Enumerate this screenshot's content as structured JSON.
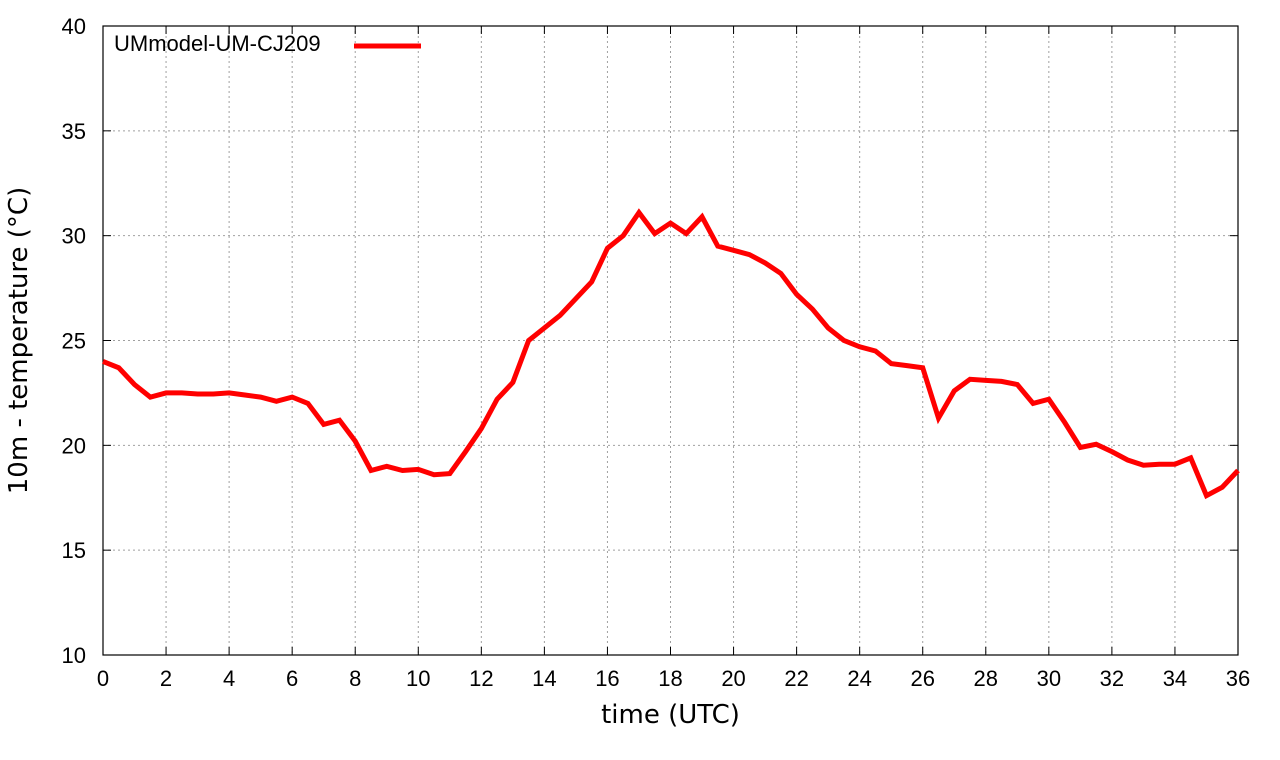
{
  "chart_data": {
    "type": "line",
    "title": "",
    "xlabel": "time (UTC)",
    "ylabel": "10m - temperature (°C)",
    "xlim": [
      0,
      36
    ],
    "ylim": [
      10,
      40
    ],
    "xticks": [
      0,
      2,
      4,
      6,
      8,
      10,
      12,
      14,
      16,
      18,
      20,
      22,
      24,
      26,
      28,
      30,
      32,
      34,
      36
    ],
    "yticks": [
      10,
      15,
      20,
      25,
      30,
      35,
      40
    ],
    "xtick_labels": [
      "0",
      "2",
      "4",
      "6",
      "8",
      "10",
      "12",
      "14",
      "16",
      "18",
      "20",
      "22",
      "24",
      "26",
      "28",
      "30",
      "32",
      "34",
      "36"
    ],
    "ytick_labels": [
      "10",
      "15",
      "20",
      "25",
      "30",
      "35",
      "40"
    ],
    "grid": true,
    "legend_position": "top-left",
    "series": [
      {
        "name": "UMmodel-UM-CJ209",
        "color": "#ff0000",
        "x": [
          0,
          0.5,
          1,
          1.5,
          2,
          2.5,
          3,
          3.5,
          4,
          4.5,
          5,
          5.5,
          6,
          6.5,
          7,
          7.5,
          8,
          8.5,
          9,
          9.5,
          10,
          10.5,
          11,
          11.5,
          12,
          12.5,
          13,
          13.5,
          14,
          14.5,
          15,
          15.5,
          16,
          16.5,
          17,
          17.5,
          18,
          18.5,
          19,
          19.5,
          20,
          20.5,
          21,
          21.5,
          22,
          22.5,
          23,
          23.5,
          24,
          24.5,
          25,
          25.5,
          26,
          26.5,
          27,
          27.5,
          28,
          28.5,
          29,
          29.5,
          30,
          30.5,
          31,
          31.5,
          32,
          32.5,
          33,
          33.5,
          34,
          34.5,
          35,
          35.5,
          36
        ],
        "values": [
          24.0,
          23.7,
          22.9,
          22.3,
          22.5,
          22.5,
          22.45,
          22.45,
          22.5,
          22.4,
          22.3,
          22.1,
          22.3,
          22.0,
          21.0,
          21.2,
          20.2,
          18.8,
          19.0,
          18.8,
          18.85,
          18.6,
          18.65,
          19.7,
          20.8,
          22.2,
          23.0,
          25.0,
          25.6,
          26.2,
          27.0,
          27.8,
          29.4,
          30.0,
          31.1,
          30.1,
          30.6,
          30.1,
          30.9,
          29.5,
          29.3,
          29.1,
          28.7,
          28.2,
          27.2,
          26.5,
          25.6,
          25.0,
          24.7,
          24.5,
          23.9,
          23.8,
          23.7,
          21.3,
          22.6,
          23.15,
          23.1,
          23.05,
          22.9,
          22.0,
          22.2,
          21.1,
          19.9,
          20.05,
          19.7,
          19.3,
          19.05,
          19.1,
          19.1,
          19.4,
          17.6,
          18.0,
          18.8
        ]
      }
    ]
  }
}
